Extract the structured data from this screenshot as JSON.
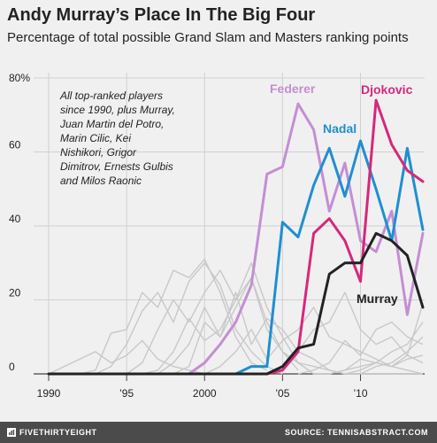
{
  "title": "Andy Murray’s Place In The Big Four",
  "subtitle": "Percentage of total possible Grand Slam and Masters ranking points",
  "footer": {
    "brand": "FIVETHIRTYEIGHT",
    "source": "SOURCE: TENNISABSTRACT.COM"
  },
  "chart_data": {
    "type": "line",
    "title": "Andy Murray’s Place In The Big Four",
    "subtitle": "Percentage of total possible Grand Slam and Masters ranking points",
    "xlim": [
      1990,
      2014
    ],
    "ylim": [
      0,
      80
    ],
    "x_ticks": [
      {
        "value": 1990,
        "label": "1990"
      },
      {
        "value": 1995,
        "label": "’95"
      },
      {
        "value": 2000,
        "label": "2000"
      },
      {
        "value": 2005,
        "label": "’05"
      },
      {
        "value": 2010,
        "label": "’10"
      }
    ],
    "y_ticks": [
      {
        "value": 0,
        "label": "0"
      },
      {
        "value": 20,
        "label": "20"
      },
      {
        "value": 40,
        "label": "40"
      },
      {
        "value": 60,
        "label": "60"
      },
      {
        "value": 80,
        "label": "80%"
      }
    ],
    "grid": true,
    "annotation": [
      "All top-ranked players",
      "since 1990, plus Murray,",
      "Juan Martin del Potro,",
      "Marin Cilic, Kei",
      "Nishikori, Grigor",
      "Dimitrov, Ernests Gulbis",
      "and Milos Raonic"
    ],
    "background_series": [
      {
        "x": [
          1990,
          1991,
          1992,
          1993,
          1994,
          1995,
          1996,
          1997,
          1998,
          1999,
          2000,
          2001,
          2002,
          2003,
          2004
        ],
        "values": [
          0,
          0,
          0,
          1,
          11,
          12,
          22,
          18,
          28,
          26,
          31,
          22,
          10,
          3,
          1
        ]
      },
      {
        "x": [
          1992,
          1993,
          1994,
          1995,
          1996,
          1997,
          1998,
          1999,
          2000,
          2001,
          2002,
          2003,
          2004,
          2005
        ],
        "values": [
          0,
          0,
          2,
          8,
          17,
          22,
          14,
          25,
          30,
          24,
          12,
          6,
          2,
          0
        ]
      },
      {
        "x": [
          1994,
          1995,
          1996,
          1997,
          1998,
          1999,
          2000,
          2001,
          2002,
          2003,
          2004,
          2005,
          2006
        ],
        "values": [
          0,
          0,
          3,
          12,
          20,
          14,
          22,
          28,
          20,
          26,
          14,
          6,
          1
        ]
      },
      {
        "x": [
          1996,
          1997,
          1998,
          1999,
          2000,
          2001,
          2002,
          2003,
          2004,
          2005,
          2006,
          2007
        ],
        "values": [
          0,
          1,
          6,
          15,
          9,
          12,
          20,
          30,
          18,
          10,
          3,
          0
        ]
      },
      {
        "x": [
          1997,
          1998,
          1999,
          2000,
          2001,
          2002,
          2003,
          2004,
          2005,
          2006,
          2007,
          2008,
          2009
        ],
        "values": [
          0,
          3,
          8,
          18,
          10,
          22,
          8,
          15,
          12,
          6,
          4,
          1,
          0
        ]
      },
      {
        "x": [
          1998,
          1999,
          2000,
          2001,
          2002,
          2003,
          2004,
          2005,
          2006,
          2007,
          2008,
          2009,
          2010,
          2011,
          2012,
          2013,
          2014
        ],
        "values": [
          0,
          2,
          14,
          10,
          18,
          26,
          12,
          6,
          3,
          2,
          1,
          0,
          0,
          0,
          0,
          0,
          0
        ]
      },
      {
        "x": [
          2000,
          2001,
          2002,
          2003,
          2004,
          2005,
          2006,
          2007,
          2008,
          2009,
          2010,
          2011,
          2012,
          2013,
          2014
        ],
        "values": [
          0,
          2,
          6,
          12,
          4,
          9,
          12,
          18,
          10,
          8,
          6,
          4,
          2,
          1,
          0
        ]
      },
      {
        "x": [
          2003,
          2004,
          2005,
          2006,
          2007,
          2008,
          2009,
          2010,
          2011,
          2012,
          2013,
          2014
        ],
        "values": [
          0,
          0,
          2,
          6,
          12,
          14,
          22,
          12,
          8,
          10,
          5,
          3
        ]
      },
      {
        "x": [
          2006,
          2007,
          2008,
          2009,
          2010,
          2011,
          2012,
          2013,
          2014
        ],
        "values": [
          0,
          1,
          3,
          9,
          5,
          12,
          14,
          10,
          8
        ]
      },
      {
        "x": [
          2007,
          2008,
          2009,
          2010,
          2011,
          2012,
          2013,
          2014
        ],
        "values": [
          0,
          0,
          1,
          4,
          3,
          6,
          8,
          14
        ]
      },
      {
        "x": [
          2008,
          2009,
          2010,
          2011,
          2012,
          2013,
          2014
        ],
        "values": [
          0,
          1,
          2,
          3,
          2,
          4,
          5
        ]
      },
      {
        "x": [
          2009,
          2010,
          2011,
          2012,
          2013,
          2014
        ],
        "values": [
          0,
          1,
          3,
          2,
          5,
          19
        ]
      },
      {
        "x": [
          2010,
          2011,
          2012,
          2013,
          2014
        ],
        "values": [
          0,
          2,
          3,
          6,
          10
        ]
      },
      {
        "x": [
          1990,
          1991,
          1992,
          1993,
          1994,
          1995,
          1996,
          1997,
          1998,
          1999,
          2000
        ],
        "values": [
          0,
          2,
          4,
          6,
          3,
          5,
          9,
          4,
          2,
          1,
          0
        ]
      }
    ],
    "series": [
      {
        "name": "Federer",
        "color": "#c48ed4",
        "x": [
          1998,
          1999,
          2000,
          2001,
          2002,
          2003,
          2004,
          2005,
          2006,
          2007,
          2008,
          2009,
          2010,
          2011,
          2012,
          2013,
          2014
        ],
        "values": [
          0,
          0,
          3,
          8,
          14,
          24,
          54,
          56,
          73,
          66,
          44,
          57,
          36,
          33,
          44,
          16,
          38
        ]
      },
      {
        "name": "Nadal",
        "color": "#1f8fd0",
        "x": [
          2002,
          2003,
          2004,
          2005,
          2006,
          2007,
          2008,
          2009,
          2010,
          2011,
          2012,
          2013,
          2014
        ],
        "values": [
          0,
          2,
          2,
          41,
          37,
          51,
          61,
          48,
          63,
          50,
          36,
          61,
          39
        ]
      },
      {
        "name": "Djokovic",
        "color": "#d6287c",
        "x": [
          2003,
          2004,
          2005,
          2006,
          2007,
          2008,
          2009,
          2010,
          2011,
          2012,
          2013,
          2014
        ],
        "values": [
          0,
          0,
          1,
          6,
          38,
          42,
          36,
          25,
          74,
          62,
          55,
          52
        ]
      },
      {
        "name": "Murray",
        "color": "#222222",
        "x": [
          1990,
          1991,
          1992,
          1993,
          1994,
          1995,
          1996,
          1997,
          1998,
          1999,
          2000,
          2001,
          2002,
          2003,
          2004,
          2005,
          2006,
          2007,
          2008,
          2009,
          2010,
          2011,
          2012,
          2013,
          2014
        ],
        "values": [
          0,
          0,
          0,
          0,
          0,
          0,
          0,
          0,
          0,
          0,
          0,
          0,
          0,
          0,
          0,
          2,
          7,
          8,
          27,
          30,
          30,
          38,
          36,
          32,
          18
        ]
      }
    ]
  }
}
